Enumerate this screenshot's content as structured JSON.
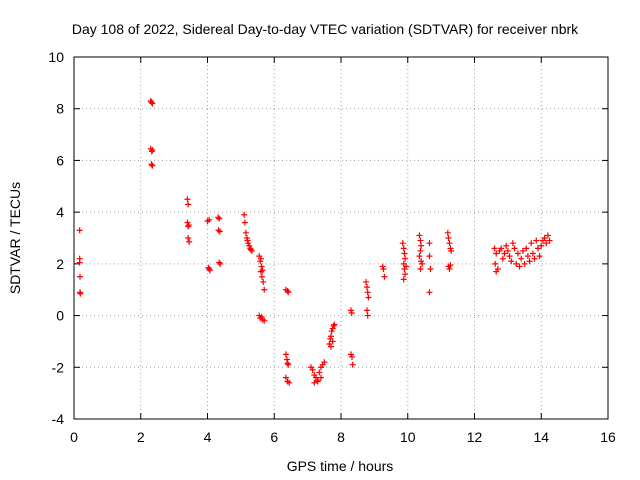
{
  "chart_data": {
    "type": "scatter",
    "title": "Day 108 of 2022, Sidereal Day-to-day VTEC variation (SDTVAR) for receiver nbrk",
    "xlabel": "GPS time / hours",
    "ylabel": "SDTVAR / TECUs",
    "xlim": [
      0,
      16
    ],
    "ylim": [
      -4,
      10
    ],
    "xticks": [
      0,
      2,
      4,
      6,
      8,
      10,
      12,
      14,
      16
    ],
    "yticks": [
      -4,
      -2,
      0,
      2,
      4,
      6,
      8,
      10
    ],
    "grid": true,
    "marker": "+",
    "color": "#ff0000",
    "series": [
      {
        "name": "SDTVAR",
        "points": [
          [
            0.17,
            3.3
          ],
          [
            0.17,
            2.2
          ],
          [
            0.17,
            2.05
          ],
          [
            0.18,
            1.5
          ],
          [
            0.18,
            0.9
          ],
          [
            0.19,
            0.85
          ],
          [
            2.3,
            8.3
          ],
          [
            2.32,
            8.25
          ],
          [
            2.35,
            8.2
          ],
          [
            2.3,
            6.45
          ],
          [
            2.33,
            6.35
          ],
          [
            2.35,
            6.4
          ],
          [
            2.32,
            5.85
          ],
          [
            2.35,
            5.8
          ],
          [
            3.4,
            4.5
          ],
          [
            3.42,
            4.3
          ],
          [
            3.4,
            3.6
          ],
          [
            3.42,
            3.45
          ],
          [
            3.44,
            3.5
          ],
          [
            3.42,
            3.0
          ],
          [
            3.45,
            2.85
          ],
          [
            4.0,
            3.65
          ],
          [
            4.05,
            3.7
          ],
          [
            4.03,
            1.85
          ],
          [
            4.05,
            1.8
          ],
          [
            4.07,
            1.75
          ],
          [
            4.32,
            3.8
          ],
          [
            4.35,
            3.75
          ],
          [
            4.33,
            3.3
          ],
          [
            4.37,
            3.25
          ],
          [
            4.35,
            2.05
          ],
          [
            4.38,
            2.0
          ],
          [
            5.1,
            3.9
          ],
          [
            5.12,
            3.6
          ],
          [
            5.15,
            3.2
          ],
          [
            5.18,
            3.0
          ],
          [
            5.2,
            2.9
          ],
          [
            5.22,
            2.8
          ],
          [
            5.25,
            2.7
          ],
          [
            5.28,
            2.6
          ],
          [
            5.3,
            2.55
          ],
          [
            5.33,
            2.5
          ],
          [
            5.55,
            2.3
          ],
          [
            5.58,
            2.1
          ],
          [
            5.6,
            2.2
          ],
          [
            5.62,
            1.9
          ],
          [
            5.6,
            1.7
          ],
          [
            5.65,
            1.75
          ],
          [
            5.63,
            1.5
          ],
          [
            5.67,
            1.3
          ],
          [
            5.7,
            1.0
          ],
          [
            5.55,
            0.0
          ],
          [
            5.58,
            -0.1
          ],
          [
            5.62,
            -0.05
          ],
          [
            5.65,
            -0.15
          ],
          [
            5.7,
            -0.2
          ],
          [
            6.35,
            1.0
          ],
          [
            6.4,
            0.95
          ],
          [
            6.42,
            0.9
          ],
          [
            6.35,
            -1.5
          ],
          [
            6.38,
            -1.7
          ],
          [
            6.4,
            -1.85
          ],
          [
            6.42,
            -1.9
          ],
          [
            6.35,
            -2.4
          ],
          [
            6.4,
            -2.55
          ],
          [
            6.45,
            -2.6
          ],
          [
            7.1,
            -2.0
          ],
          [
            7.15,
            -2.1
          ],
          [
            7.2,
            -2.3
          ],
          [
            7.25,
            -2.4
          ],
          [
            7.3,
            -2.5
          ],
          [
            7.35,
            -2.2
          ],
          [
            7.4,
            -2.0
          ],
          [
            7.45,
            -1.9
          ],
          [
            7.5,
            -1.8
          ],
          [
            7.2,
            -2.6
          ],
          [
            7.3,
            -2.55
          ],
          [
            7.4,
            -2.4
          ],
          [
            7.65,
            -1.1
          ],
          [
            7.68,
            -0.9
          ],
          [
            7.7,
            -0.8
          ],
          [
            7.72,
            -0.6
          ],
          [
            7.75,
            -0.5
          ],
          [
            7.78,
            -0.4
          ],
          [
            7.8,
            -0.35
          ],
          [
            7.7,
            -1.2
          ],
          [
            7.75,
            -1.0
          ],
          [
            8.3,
            0.2
          ],
          [
            8.32,
            0.1
          ],
          [
            8.3,
            -1.5
          ],
          [
            8.33,
            -1.6
          ],
          [
            8.35,
            -1.9
          ],
          [
            8.75,
            1.3
          ],
          [
            8.78,
            1.1
          ],
          [
            8.8,
            0.9
          ],
          [
            8.82,
            0.7
          ],
          [
            8.78,
            0.2
          ],
          [
            8.8,
            0.0
          ],
          [
            9.25,
            1.9
          ],
          [
            9.27,
            1.8
          ],
          [
            9.3,
            1.5
          ],
          [
            9.85,
            2.8
          ],
          [
            9.88,
            2.6
          ],
          [
            9.9,
            2.4
          ],
          [
            9.92,
            2.2
          ],
          [
            9.88,
            2.0
          ],
          [
            9.9,
            1.8
          ],
          [
            9.92,
            1.6
          ],
          [
            9.88,
            1.4
          ],
          [
            9.95,
            1.9
          ],
          [
            10.35,
            3.1
          ],
          [
            10.38,
            2.9
          ],
          [
            10.4,
            2.7
          ],
          [
            10.38,
            2.5
          ],
          [
            10.35,
            2.3
          ],
          [
            10.4,
            2.1
          ],
          [
            10.43,
            2.0
          ],
          [
            10.38,
            1.8
          ],
          [
            10.65,
            2.8
          ],
          [
            10.65,
            2.3
          ],
          [
            10.68,
            1.8
          ],
          [
            10.65,
            0.9
          ],
          [
            11.2,
            3.2
          ],
          [
            11.22,
            3.0
          ],
          [
            11.25,
            2.8
          ],
          [
            11.28,
            2.6
          ],
          [
            11.3,
            2.5
          ],
          [
            11.22,
            1.9
          ],
          [
            11.25,
            1.8
          ],
          [
            11.28,
            1.95
          ],
          [
            12.6,
            2.6
          ],
          [
            12.65,
            2.4
          ],
          [
            12.62,
            2.0
          ],
          [
            12.65,
            1.7
          ],
          [
            12.7,
            1.8
          ],
          [
            12.75,
            2.5
          ],
          [
            12.8,
            2.6
          ],
          [
            12.85,
            2.2
          ],
          [
            12.9,
            2.4
          ],
          [
            12.95,
            2.7
          ],
          [
            13.0,
            2.5
          ],
          [
            13.05,
            2.3
          ],
          [
            13.1,
            2.1
          ],
          [
            13.15,
            2.8
          ],
          [
            13.2,
            2.6
          ],
          [
            13.25,
            2.0
          ],
          [
            13.3,
            2.4
          ],
          [
            13.35,
            1.9
          ],
          [
            13.4,
            2.2
          ],
          [
            13.45,
            2.5
          ],
          [
            13.5,
            2.0
          ],
          [
            13.55,
            2.6
          ],
          [
            13.6,
            2.3
          ],
          [
            13.65,
            2.1
          ],
          [
            13.7,
            2.8
          ],
          [
            13.75,
            2.4
          ],
          [
            13.8,
            2.2
          ],
          [
            13.85,
            2.9
          ],
          [
            13.9,
            2.6
          ],
          [
            13.95,
            2.3
          ],
          [
            14.0,
            2.7
          ],
          [
            14.05,
            2.9
          ],
          [
            14.1,
            3.0
          ],
          [
            14.15,
            2.8
          ],
          [
            14.2,
            3.1
          ],
          [
            14.25,
            2.9
          ]
        ]
      }
    ]
  }
}
